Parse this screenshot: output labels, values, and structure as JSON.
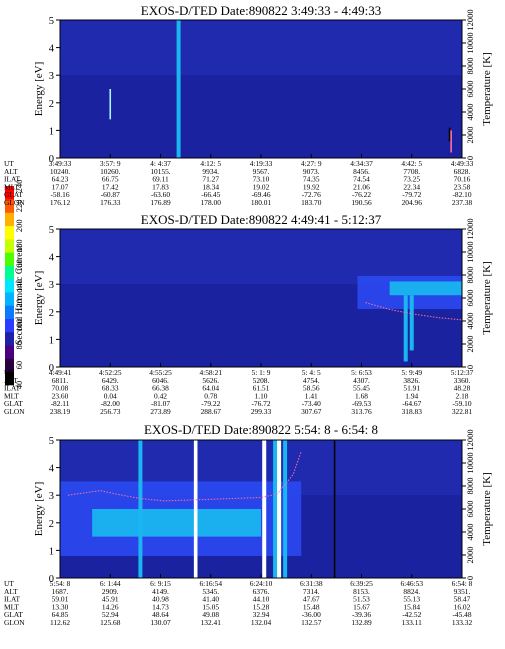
{
  "colorbar": {
    "label": "Second Harmonic Current",
    "ticks": [
      "40",
      "60",
      "80",
      "100",
      "120",
      "140",
      "160",
      "180",
      "200",
      "220",
      "240"
    ],
    "colors": [
      "#000000",
      "#28003c",
      "#4b0082",
      "#1f1fa8",
      "#2a3cff",
      "#0a7aff",
      "#00b4ff",
      "#00e6ff",
      "#00ff90",
      "#4cff00",
      "#c8ff00",
      "#ffff00",
      "#ffb000",
      "#ff5a00",
      "#ff0000"
    ]
  },
  "colors": {
    "background": "#1a22a0",
    "upper_band": "#2330b8",
    "mid": "#2a48ee",
    "cyan": "#19b6f0",
    "core": "#2aa8ea",
    "spike": "#a8f4ff",
    "temp": "#ff70a0",
    "white_gap": "#ffffff",
    "black_line": "#000000"
  },
  "chart_data": [
    {
      "type": "heatmap",
      "title": "EXOS-D/TED   Date:890822  3:49:33 - 4:49:33",
      "ylabel": "Energy [eV]",
      "y2label": "Temperature [K]",
      "ylim": [
        0,
        5
      ],
      "y2lim": [
        0,
        12000
      ],
      "yticks": [
        "0",
        "1",
        "2",
        "3",
        "4",
        "5"
      ],
      "y2ticks": [
        "0",
        "2000",
        "4000",
        "6000",
        "8000",
        "10000",
        "12000"
      ],
      "table_rows": [
        "UT",
        "ALT",
        "ILAT",
        "MLT",
        "GLAT",
        "GLON"
      ],
      "table": [
        [
          "3:49:33",
          "3:57: 9",
          "4: 4:37",
          "4:12: 5",
          "4:19:33",
          "4:27: 9",
          "4:34:37",
          "4:42: 5",
          "4:49:33"
        ],
        [
          "10240.",
          "10260.",
          "10155.",
          "9934.",
          "9567.",
          "9073.",
          "8456.",
          "7708.",
          "6828."
        ],
        [
          "64.23",
          "66.75",
          "69.11",
          "71.27",
          "73.10",
          "74.35",
          "74.54",
          "73.25",
          "70.16"
        ],
        [
          "17.07",
          "17.42",
          "17.83",
          "18.34",
          "19.02",
          "19.92",
          "21.06",
          "22.34",
          "23.58"
        ],
        [
          "-58.16",
          "-60.87",
          "-63.60",
          "-66.45",
          "-69.46",
          "-72.76",
          "-76.22",
          "-79.72",
          "-82.10"
        ],
        [
          "176.12",
          "176.33",
          "176.89",
          "178.00",
          "180.01",
          "183.70",
          "190.56",
          "204.96",
          "237.38"
        ]
      ],
      "features": [
        {
          "kind": "spike",
          "t": 0.295,
          "e0": 0,
          "e1": 5,
          "color": "cyan"
        },
        {
          "kind": "line",
          "t": 0.125,
          "e0": 1.4,
          "e1": 2.5,
          "color": "spike"
        },
        {
          "kind": "line",
          "t": 0.969,
          "e0": 0.6,
          "e1": 1.1,
          "color": "black_line"
        },
        {
          "kind": "line",
          "t": 0.973,
          "e0": 0.2,
          "e1": 1.0,
          "color": "temp"
        }
      ]
    },
    {
      "type": "heatmap",
      "title": "EXOS-D/TED   Date:890822  4:49:41 - 5:12:37",
      "ylabel": "Energy [eV]",
      "y2label": "Temperature [K]",
      "ylim": [
        0,
        5
      ],
      "y2lim": [
        0,
        12000
      ],
      "yticks": [
        "0",
        "1",
        "2",
        "3",
        "4",
        "5"
      ],
      "y2ticks": [
        "0",
        "2000",
        "4000",
        "6000",
        "8000",
        "10000",
        "12000"
      ],
      "table_rows": [
        "UT",
        "ALT",
        "ILAT",
        "MLT",
        "GLAT",
        "GLON"
      ],
      "table": [
        [
          "4:49:41",
          "4:52:25",
          "4:55:25",
          "4:58:21",
          "5: 1: 9",
          "5: 4: 5",
          "5: 6:53",
          "5: 9:49",
          "5:12:37"
        ],
        [
          "6811.",
          "6429.",
          "6046.",
          "5626.",
          "5208.",
          "4754.",
          "4307.",
          "3826.",
          "3360."
        ],
        [
          "70.08",
          "68.33",
          "66.38",
          "64.04",
          "61.51",
          "58.56",
          "55.45",
          "51.91",
          "48.28"
        ],
        [
          "23.60",
          "0.04",
          "0.42",
          "0.78",
          "1.10",
          "1.41",
          "1.68",
          "1.94",
          "2.18"
        ],
        [
          "-82.11",
          "-82.00",
          "-81.07",
          "-79.22",
          "-76.72",
          "-73.40",
          "-69.53",
          "-64.67",
          "-59.10"
        ],
        [
          "238.19",
          "256.73",
          "273.89",
          "288.67",
          "299.33",
          "307.67",
          "313.76",
          "318.83",
          "322.81"
        ]
      ],
      "features": [
        {
          "kind": "region",
          "t0": 0.74,
          "t1": 1.0,
          "e0": 2.1,
          "e1": 3.3,
          "color": "mid"
        },
        {
          "kind": "region",
          "t0": 0.82,
          "t1": 1.0,
          "e0": 2.6,
          "e1": 3.1,
          "color": "cyan"
        },
        {
          "kind": "spike",
          "t": 0.86,
          "e0": 0.2,
          "e1": 2.6,
          "color": "cyan"
        },
        {
          "kind": "spike",
          "t": 0.875,
          "e0": 0.6,
          "e1": 2.6,
          "color": "cyan"
        }
      ],
      "temperature": {
        "t": [
          0.76,
          0.82,
          0.88,
          0.94,
          1.0
        ],
        "k": [
          5600,
          5000,
          4600,
          4300,
          4100
        ]
      }
    },
    {
      "type": "heatmap",
      "title": "EXOS-D/TED   Date:890822  5:54: 8 - 6:54: 8",
      "ylabel": "Energy [eV]",
      "y2label": "Temperature [K]",
      "ylim": [
        0,
        5
      ],
      "y2lim": [
        0,
        12000
      ],
      "yticks": [
        "0",
        "1",
        "2",
        "3",
        "4",
        "5"
      ],
      "y2ticks": [
        "0",
        "2000",
        "4000",
        "6000",
        "8000",
        "10000",
        "12000"
      ],
      "table_rows": [
        "UT",
        "ALT",
        "ILAT",
        "MLT",
        "GLAT",
        "GLON"
      ],
      "table": [
        [
          "5:54: 8",
          "6: 1:44",
          "6: 9:15",
          "6:16:54",
          "6:24:10",
          "6:31:38",
          "6:39:25",
          "6:46:53",
          "6:54: 8"
        ],
        [
          "1687.",
          "2909.",
          "4149.",
          "5345.",
          "6376.",
          "7314.",
          "8153.",
          "8824.",
          "9351."
        ],
        [
          "59.01",
          "45.91",
          "40.98",
          "41.40",
          "44.10",
          "47.67",
          "51.53",
          "55.13",
          "58.47"
        ],
        [
          "13.30",
          "14.26",
          "14.73",
          "15.05",
          "15.28",
          "15.48",
          "15.67",
          "15.84",
          "16.02"
        ],
        [
          "64.85",
          "52.94",
          "48.64",
          "49.08",
          "32.94",
          "-36.00",
          "-39.36",
          "-42.52",
          "-45.48"
        ],
        [
          "112.62",
          "125.68",
          "130.07",
          "132.41",
          "132.04",
          "132.57",
          "132.89",
          "133.11",
          "133.32"
        ]
      ],
      "features": [
        {
          "kind": "region",
          "t0": 0.0,
          "t1": 0.6,
          "e0": 0.8,
          "e1": 3.5,
          "color": "mid"
        },
        {
          "kind": "region",
          "t0": 0.08,
          "t1": 0.5,
          "e0": 1.5,
          "e1": 2.5,
          "color": "cyan"
        },
        {
          "kind": "gap",
          "t0": 0.333,
          "t1": 0.342
        },
        {
          "kind": "gap",
          "t0": 0.503,
          "t1": 0.513
        },
        {
          "kind": "gap",
          "t0": 0.537,
          "t1": 0.55
        },
        {
          "kind": "spike",
          "t": 0.2,
          "e0": 0,
          "e1": 5,
          "color": "cyan"
        },
        {
          "kind": "spike",
          "t": 0.535,
          "e0": 0,
          "e1": 5,
          "color": "cyan"
        },
        {
          "kind": "spike",
          "t": 0.56,
          "e0": 0,
          "e1": 5,
          "color": "cyan"
        },
        {
          "kind": "line",
          "t": 0.683,
          "e0": 0,
          "e1": 5,
          "color": "black_line"
        }
      ],
      "temperature": {
        "t": [
          0.02,
          0.06,
          0.1,
          0.14,
          0.2,
          0.26,
          0.34,
          0.42,
          0.5,
          0.54,
          0.58,
          0.6
        ],
        "k": [
          7200,
          7400,
          7600,
          7300,
          6900,
          6700,
          6800,
          6900,
          7000,
          7300,
          9000,
          11000
        ]
      }
    }
  ]
}
